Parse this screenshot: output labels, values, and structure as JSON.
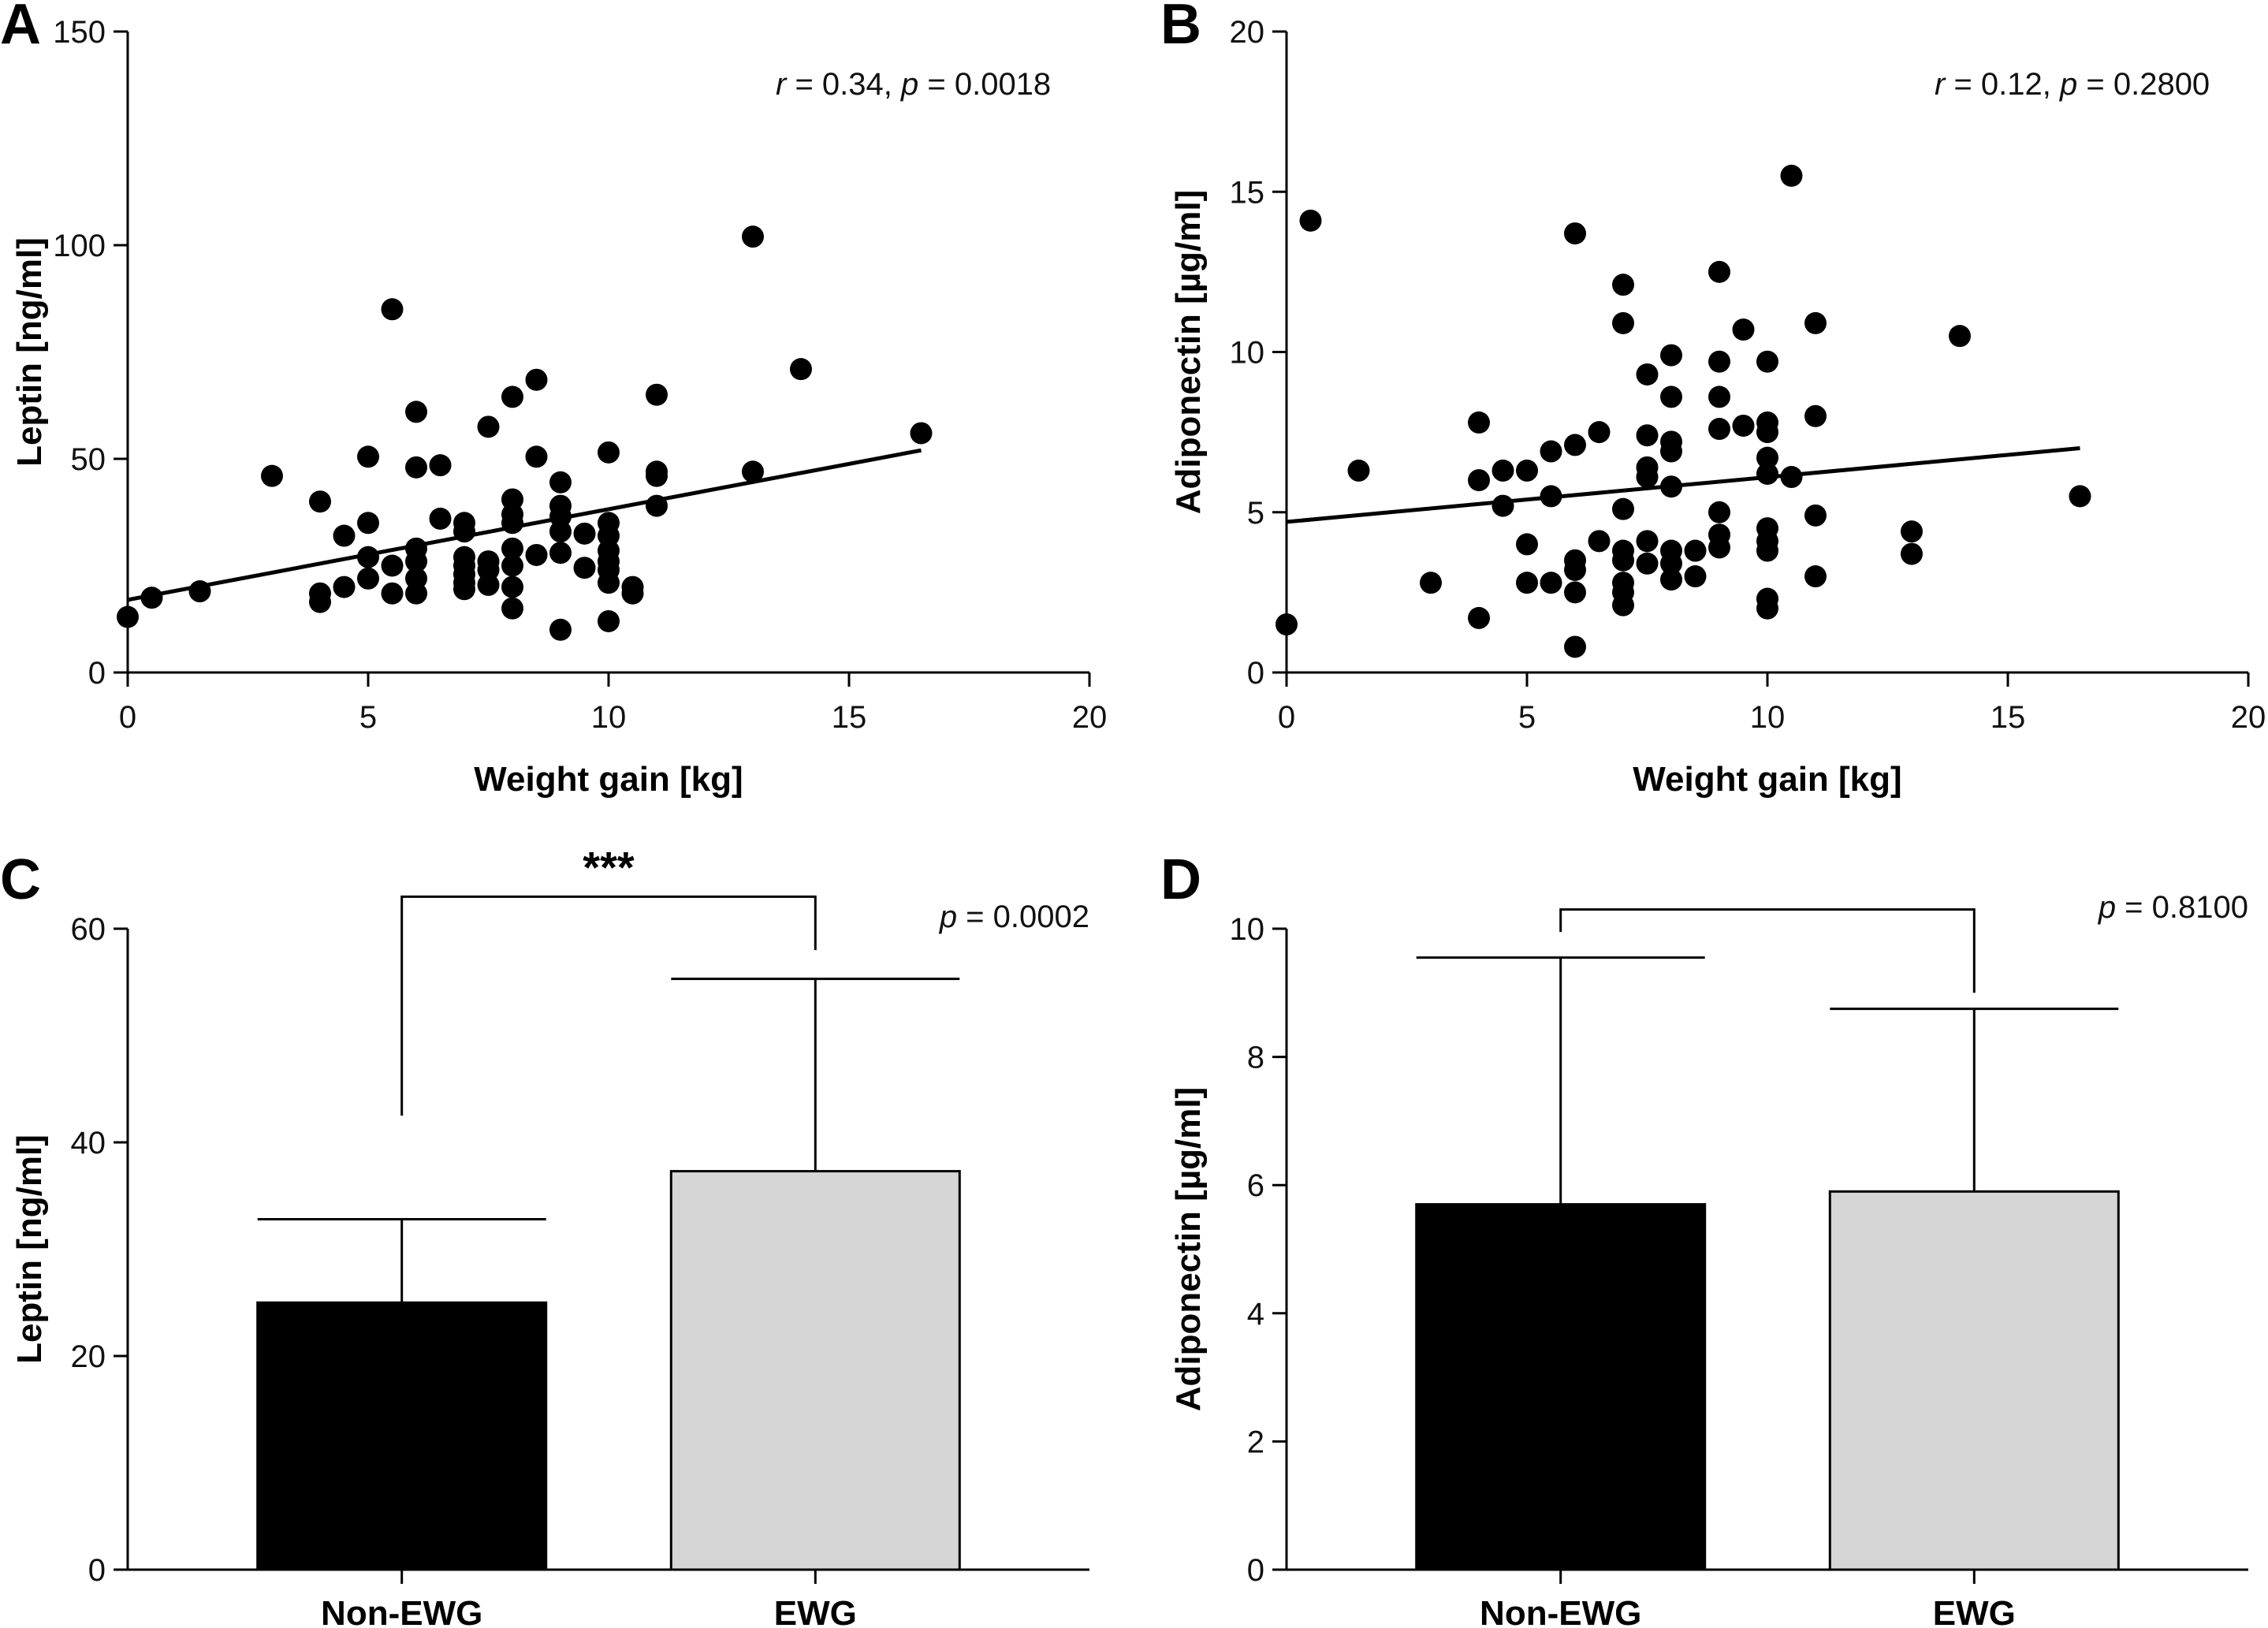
{
  "chart_data": [
    {
      "panel": "A",
      "type": "scatter",
      "xlabel": "Weight gain [kg]",
      "ylabel": "Leptin [ng/ml]",
      "xlim": [
        0,
        20
      ],
      "ylim": [
        0,
        150
      ],
      "xticks": [
        0,
        5,
        10,
        15,
        20
      ],
      "yticks": [
        0,
        50,
        100,
        150
      ],
      "stat_r": "0.34",
      "stat_p": "0.0018",
      "fit": {
        "x": [
          0,
          16.5
        ],
        "y": [
          17,
          52
        ]
      },
      "points": [
        [
          0,
          13
        ],
        [
          0.5,
          17.5
        ],
        [
          1.5,
          19
        ],
        [
          3,
          46
        ],
        [
          4,
          40
        ],
        [
          4,
          16.5
        ],
        [
          4,
          18.5
        ],
        [
          4.5,
          32
        ],
        [
          4.5,
          20
        ],
        [
          5,
          50.5
        ],
        [
          5,
          35
        ],
        [
          5,
          27
        ],
        [
          5,
          22
        ],
        [
          5.5,
          85
        ],
        [
          5.5,
          25
        ],
        [
          5.5,
          18.5
        ],
        [
          6,
          61
        ],
        [
          6,
          48
        ],
        [
          6,
          29
        ],
        [
          6,
          26
        ],
        [
          6,
          22
        ],
        [
          6,
          18.5
        ],
        [
          6.5,
          48.5
        ],
        [
          6.5,
          36
        ],
        [
          7,
          35
        ],
        [
          7,
          33
        ],
        [
          7,
          27
        ],
        [
          7,
          25
        ],
        [
          7,
          23
        ],
        [
          7,
          21
        ],
        [
          7,
          19.5
        ],
        [
          7.5,
          57.5
        ],
        [
          7.5,
          24
        ],
        [
          7.5,
          26
        ],
        [
          7.5,
          20.5
        ],
        [
          8,
          64.5
        ],
        [
          8,
          40.5
        ],
        [
          8,
          37
        ],
        [
          8,
          35
        ],
        [
          8,
          29
        ],
        [
          8,
          25
        ],
        [
          8,
          20
        ],
        [
          8,
          15
        ],
        [
          8.5,
          68.5
        ],
        [
          8.5,
          50.5
        ],
        [
          8.5,
          27.5
        ],
        [
          9,
          44.5
        ],
        [
          9,
          39
        ],
        [
          9,
          36.5
        ],
        [
          9,
          33
        ],
        [
          9,
          28
        ],
        [
          9,
          10
        ],
        [
          9.5,
          32.5
        ],
        [
          9.5,
          24.5
        ],
        [
          10,
          51.5
        ],
        [
          10,
          35
        ],
        [
          10,
          32
        ],
        [
          10,
          28.5
        ],
        [
          10,
          26
        ],
        [
          10,
          24
        ],
        [
          10,
          21
        ],
        [
          10,
          12
        ],
        [
          10.5,
          20
        ],
        [
          10.5,
          18.5
        ],
        [
          11,
          65
        ],
        [
          11,
          47
        ],
        [
          11,
          46
        ],
        [
          11,
          39
        ],
        [
          13,
          102
        ],
        [
          13,
          47
        ],
        [
          14,
          71
        ],
        [
          16.5,
          56
        ]
      ]
    },
    {
      "panel": "B",
      "type": "scatter",
      "xlabel": "Weight gain [kg]",
      "ylabel": "Adiponectin [µg/ml]",
      "xlim": [
        0,
        20
      ],
      "ylim": [
        0,
        20
      ],
      "xticks": [
        0,
        5,
        10,
        15,
        20
      ],
      "yticks": [
        0,
        5,
        10,
        15,
        20
      ],
      "stat_r": "0.12",
      "stat_p": "0.2800",
      "fit": {
        "x": [
          0,
          16.5
        ],
        "y": [
          4.7,
          7.0
        ]
      },
      "points": [
        [
          0,
          1.5
        ],
        [
          0.5,
          14.1
        ],
        [
          1.5,
          6.3
        ],
        [
          3,
          2.8
        ],
        [
          4,
          7.8
        ],
        [
          4,
          6.0
        ],
        [
          4,
          1.7
        ],
        [
          4.5,
          6.3
        ],
        [
          4.5,
          5.2
        ],
        [
          5,
          6.3
        ],
        [
          5,
          4.0
        ],
        [
          5,
          2.8
        ],
        [
          5.5,
          6.9
        ],
        [
          5.5,
          5.5
        ],
        [
          5.5,
          2.8
        ],
        [
          6,
          13.7
        ],
        [
          6,
          7.1
        ],
        [
          6,
          3.5
        ],
        [
          6,
          3.2
        ],
        [
          6,
          2.5
        ],
        [
          6,
          0.8
        ],
        [
          6.5,
          7.5
        ],
        [
          6.5,
          4.1
        ],
        [
          7,
          12.1
        ],
        [
          7,
          10.9
        ],
        [
          7,
          5.1
        ],
        [
          7,
          3.8
        ],
        [
          7,
          3.5
        ],
        [
          7,
          2.8
        ],
        [
          7,
          2.5
        ],
        [
          7,
          2.1
        ],
        [
          7.5,
          9.3
        ],
        [
          7.5,
          7.4
        ],
        [
          7.5,
          6.4
        ],
        [
          7.5,
          6.1
        ],
        [
          7.5,
          4.1
        ],
        [
          7.5,
          3.4
        ],
        [
          8,
          9.9
        ],
        [
          8,
          8.6
        ],
        [
          8,
          7.2
        ],
        [
          8,
          6.9
        ],
        [
          8,
          5.8
        ],
        [
          8,
          3.8
        ],
        [
          8,
          3.4
        ],
        [
          8,
          2.9
        ],
        [
          8.5,
          3.8
        ],
        [
          8.5,
          3.0
        ],
        [
          9,
          12.5
        ],
        [
          9,
          9.7
        ],
        [
          9,
          8.6
        ],
        [
          9,
          7.6
        ],
        [
          9,
          5.0
        ],
        [
          9,
          4.3
        ],
        [
          9,
          3.9
        ],
        [
          9.5,
          10.7
        ],
        [
          9.5,
          7.7
        ],
        [
          10,
          9.7
        ],
        [
          10,
          7.8
        ],
        [
          10,
          7.5
        ],
        [
          10,
          6.7
        ],
        [
          10,
          6.2
        ],
        [
          10,
          4.5
        ],
        [
          10,
          4.1
        ],
        [
          10,
          3.8
        ],
        [
          10,
          2.3
        ],
        [
          10,
          2.0
        ],
        [
          10.5,
          15.5
        ],
        [
          10.5,
          6.1
        ],
        [
          11,
          10.9
        ],
        [
          11,
          8.0
        ],
        [
          11,
          4.9
        ],
        [
          11,
          3.0
        ],
        [
          13,
          4.4
        ],
        [
          13,
          3.7
        ],
        [
          14,
          10.5
        ],
        [
          16.5,
          5.5
        ]
      ]
    },
    {
      "panel": "C",
      "type": "bar",
      "ylabel": "Leptin [ng/ml]",
      "ylim": [
        0,
        60
      ],
      "yticks": [
        0,
        20,
        40,
        60
      ],
      "categories": [
        "Non-EWG",
        "EWG"
      ],
      "values": [
        25,
        37.3
      ],
      "errors": [
        7.8,
        18
      ],
      "colors": [
        "#000000",
        "#d6d6d6"
      ],
      "bracket_y": 63,
      "bracket_left_y": 42.5,
      "bracket_right_y": 58,
      "significance": "***",
      "stat_p": "0.0002"
    },
    {
      "panel": "D",
      "type": "bar",
      "ylabel": "Adiponectin [µg/ml]",
      "ylim": [
        0,
        10
      ],
      "yticks": [
        0,
        2,
        4,
        6,
        8,
        10
      ],
      "categories": [
        "Non-EWG",
        "EWG"
      ],
      "values": [
        5.7,
        5.9
      ],
      "errors": [
        3.85,
        2.85
      ],
      "colors": [
        "#000000",
        "#d6d6d6"
      ],
      "bracket_y": 10.3,
      "bracket_left_y": 9.95,
      "bracket_right_y": 9.0,
      "significance": "",
      "stat_p": "0.8100"
    }
  ]
}
